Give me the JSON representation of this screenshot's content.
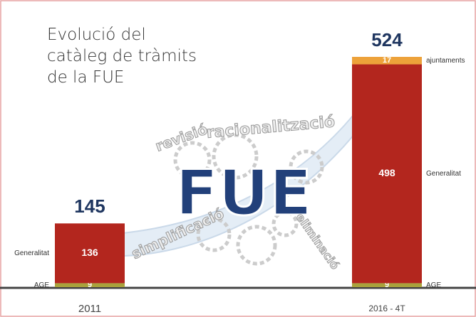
{
  "chart_data": {
    "type": "stacked-bar",
    "title": "Evolució del catàleg de tràmits de la FUE",
    "categories": [
      "2011",
      "2016 - 4T"
    ],
    "series": [
      {
        "name": "AGE",
        "color": "#a9a23c",
        "values": [
          9,
          9
        ]
      },
      {
        "name": "Generalitat",
        "color": "#b3261e",
        "values": [
          136,
          498
        ]
      },
      {
        "name": "ajuntaments",
        "color": "#eda23a",
        "values": [
          null,
          17
        ]
      }
    ],
    "totals": [
      145,
      524
    ],
    "annotations": [
      "FUE",
      "revisió",
      "racionalització",
      "simplificació",
      "eliminació"
    ]
  }
}
